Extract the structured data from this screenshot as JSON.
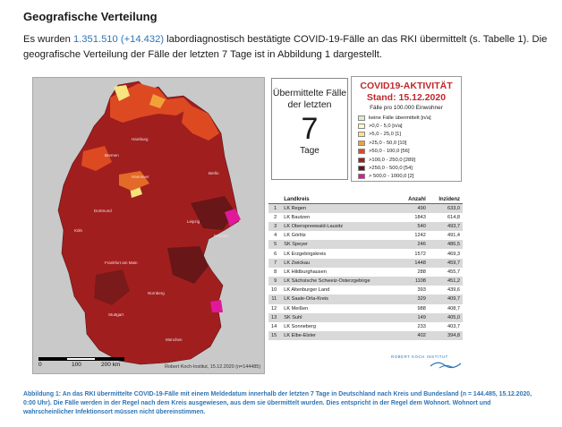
{
  "section": {
    "heading": "Geografische Verteilung"
  },
  "intro": {
    "prefix": "Es wurden ",
    "total_cases": "1.351.510",
    "new_cases": "(+14.432)",
    "text": " labordiagnostisch bestätigte COVID-19-Fälle an das RKI übermittelt (s. Tabelle 1). Die geografische Verteilung der Fälle der letzten 7 Tage ist in Abbildung 1 dargestellt."
  },
  "map": {
    "cities": [
      "Hamburg",
      "Bremen",
      "Berlin",
      "Hannover",
      "Dortmund",
      "Köln",
      "Leipzig",
      "Dresden",
      "Frankfurt am Main",
      "Nürnberg",
      "Stuttgart",
      "München"
    ],
    "scale": [
      "0",
      "100",
      "200 km"
    ],
    "credit": "Robert Koch-Institut, 15.12.2020 (n=144485)",
    "colors": {
      "hotspot": "#e0189a",
      "dark": "#7c1b1b",
      "mid": "#a52121",
      "light": "#d23d22",
      "orange": "#ee9b35",
      "yellow": "#f6e27a",
      "background": "#c9c9c9"
    }
  },
  "box7": {
    "label": "Übermittelte Fälle der letzten",
    "number": "7",
    "unit": "Tage"
  },
  "legend": {
    "title": "COVID19-AKTIVITÄT",
    "date": "Stand: 15.12.2020",
    "subtitle": "Fälle pro 100.000 Einwohner",
    "items": [
      {
        "label": "keine Fälle übermittelt [n/a]",
        "color": "#d7f0c9"
      },
      {
        "label": ">0,0 - 5,0 [n/a]",
        "color": "#fbfac8"
      },
      {
        "label": ">5,0 - 25,0 [1]",
        "color": "#f7e57f"
      },
      {
        "label": ">25,0 - 50,0 [10]",
        "color": "#f2a13a"
      },
      {
        "label": ">50,0 - 100,0 [56]",
        "color": "#dd4a22"
      },
      {
        "label": ">100,0 - 250,0 [289]",
        "color": "#a11e1f"
      },
      {
        "label": ">250,0 - 500,0 [54]",
        "color": "#681617"
      },
      {
        "label": "> 500,0 - 1000,0 [2]",
        "color": "#e0189a"
      }
    ]
  },
  "table": {
    "headers": [
      "",
      "Landkreis",
      "Anzahl",
      "Inzidenz"
    ],
    "rows": [
      [
        "1",
        "LK Regen",
        "490",
        "633,0"
      ],
      [
        "2",
        "LK Bautzen",
        "1843",
        "614,8"
      ],
      [
        "3",
        "LK Oberspreewald-Lausitz",
        "540",
        "493,7"
      ],
      [
        "4",
        "LK Görlitz",
        "1242",
        "491,4"
      ],
      [
        "5",
        "SK Speyer",
        "246",
        "486,5"
      ],
      [
        "6",
        "LK Erzgebirgskreis",
        "1572",
        "469,3"
      ],
      [
        "7",
        "LK Zwickau",
        "1448",
        "459,7"
      ],
      [
        "8",
        "LK Hildburghausen",
        "288",
        "455,7"
      ],
      [
        "9",
        "LK Sächsische Schweiz-Osterzgebirge",
        "1108",
        "451,2"
      ],
      [
        "10",
        "LK Altenburger Land",
        "393",
        "439,6"
      ],
      [
        "11",
        "LK Saale-Orla-Kreis",
        "329",
        "409,7"
      ],
      [
        "12",
        "LK Meißen",
        "988",
        "408,7"
      ],
      [
        "13",
        "SK Suhl",
        "149",
        "405,0"
      ],
      [
        "14",
        "LK Sonneberg",
        "233",
        "403,7"
      ],
      [
        "15",
        "LK Elbe-Elster",
        "402",
        "394,8"
      ]
    ]
  },
  "logo": {
    "text": "ROBERT KOCH INSTITUT"
  },
  "caption": "Abbildung 1: An das RKI übermittelte COVID-19-Fälle mit einem Meldedatum innerhalb der letzten 7 Tage in Deutschland nach Kreis und Bundesland (n = 144.485, 15.12.2020, 0:00 Uhr). Die Fälle werden in der Regel nach dem Kreis ausgewiesen, aus dem sie übermittelt wurden. Dies entspricht in der Regel dem Wohnort. Wohnort und wahrscheinlicher Infektionsort müssen nicht übereinstimmen."
}
